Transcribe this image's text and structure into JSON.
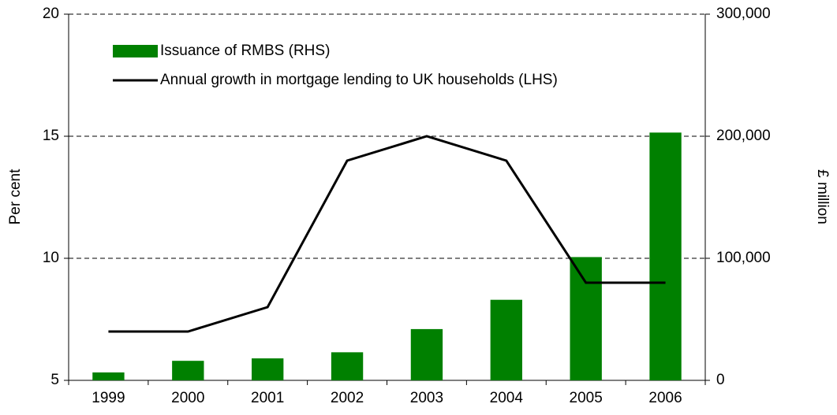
{
  "chart_data": {
    "type": "combo",
    "categories": [
      "1999",
      "2000",
      "2001",
      "2002",
      "2003",
      "2004",
      "2005",
      "2006"
    ],
    "series": [
      {
        "name": "Issuance of RMBS (RHS)",
        "type": "bar",
        "axis": "y2",
        "color": "#008000",
        "values": [
          6500,
          16000,
          18000,
          23000,
          42000,
          66000,
          101000,
          203000
        ]
      },
      {
        "name": "Annual growth in mortgage lending to UK households (LHS)",
        "type": "line",
        "axis": "y",
        "color": "#000000",
        "values": [
          7,
          7,
          8,
          14,
          15,
          14,
          9,
          9
        ]
      }
    ],
    "ylabel": "Per cent",
    "y2label": "£ million",
    "ylim": [
      5,
      20
    ],
    "yticks": [
      5,
      10,
      15,
      20
    ],
    "y2lim": [
      0,
      300000
    ],
    "y2ticks": [
      0,
      {
        "value": 100000,
        "label": "100,000"
      },
      {
        "value": 200000,
        "label": "200,000"
      },
      {
        "value": 300000,
        "label": "300,000"
      }
    ],
    "grid": true,
    "legend": "top-left"
  }
}
